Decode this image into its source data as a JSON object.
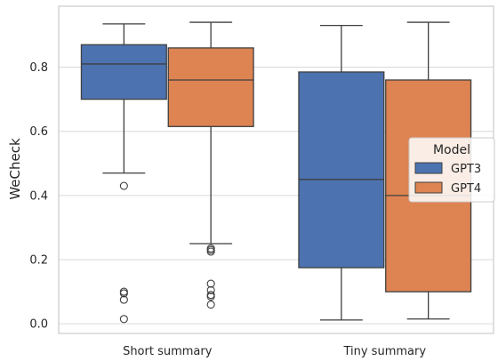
{
  "chart_data": {
    "type": "box",
    "ylabel": "WeCheck",
    "xlabel": "",
    "title": "",
    "ylim": [
      -0.03,
      0.99
    ],
    "yticks": [
      0.0,
      0.2,
      0.4,
      0.6,
      0.8
    ],
    "ytick_labels": [
      "0.0",
      "0.2",
      "0.4",
      "0.6",
      "0.8"
    ],
    "grid": true,
    "legend_position": "center-right",
    "legend": {
      "title": "Model",
      "entries": [
        {
          "name": "GPT3",
          "color": "#4c72b0"
        },
        {
          "name": "GPT4",
          "color": "#dd8452"
        }
      ]
    },
    "categories": [
      "Short summary",
      "Tiny summary"
    ],
    "series": [
      {
        "name": "GPT3",
        "color": "#4c72b0",
        "boxes": [
          {
            "whisker_low": 0.47,
            "q1": 0.7,
            "median": 0.81,
            "q3": 0.87,
            "whisker_high": 0.935,
            "outliers": [
              0.43,
              0.1,
              0.095,
              0.075,
              0.015
            ]
          },
          {
            "whisker_low": 0.012,
            "q1": 0.175,
            "median": 0.45,
            "q3": 0.785,
            "whisker_high": 0.93,
            "outliers": []
          }
        ]
      },
      {
        "name": "GPT4",
        "color": "#dd8452",
        "boxes": [
          {
            "whisker_low": 0.25,
            "q1": 0.615,
            "median": 0.76,
            "q3": 0.86,
            "whisker_high": 0.94,
            "outliers": [
              0.235,
              0.23,
              0.225,
              0.125,
              0.105,
              0.09,
              0.085,
              0.06
            ]
          },
          {
            "whisker_low": 0.015,
            "q1": 0.1,
            "median": 0.4,
            "q3": 0.76,
            "whisker_high": 0.94,
            "outliers": []
          }
        ]
      }
    ]
  }
}
